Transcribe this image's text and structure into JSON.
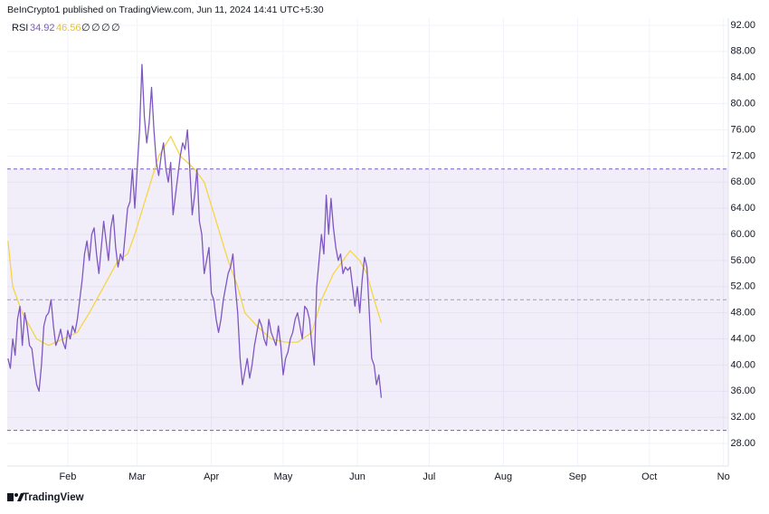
{
  "header": "BeInCrypto1 published on TradingView.com, Jun 11, 2024 14:41 UTC+5:30",
  "footer": "TradingView",
  "chart_data": {
    "type": "line",
    "legend": {
      "label": "RSI",
      "values": [
        34.92,
        46.56
      ],
      "placeholders": [
        "∅",
        "∅",
        "∅",
        "∅"
      ]
    },
    "x": [
      7,
      8,
      9,
      10,
      11,
      12,
      13,
      14,
      15,
      16,
      17,
      18,
      19,
      20,
      21,
      22,
      23,
      24,
      25,
      26,
      27,
      28,
      29,
      30,
      31,
      32,
      33,
      34,
      35,
      36,
      37,
      38,
      39,
      40,
      41,
      42,
      43,
      44,
      45,
      46,
      47,
      48,
      49,
      50,
      51,
      52,
      53,
      54,
      55,
      56,
      57,
      58,
      59,
      60,
      61,
      62,
      63,
      64,
      65,
      66,
      67,
      68,
      69,
      70,
      71,
      72,
      73,
      74,
      75,
      76,
      77,
      78,
      79,
      80,
      81,
      82,
      83,
      84,
      85,
      86,
      87,
      88,
      89,
      90,
      91,
      92,
      93,
      94,
      95,
      96,
      97,
      98,
      99,
      100,
      101,
      102,
      103,
      104,
      105,
      106,
      107,
      108,
      109,
      110,
      111,
      112,
      113,
      114,
      115,
      116,
      117,
      118,
      119,
      120,
      121,
      122,
      123,
      124,
      125,
      126,
      127,
      128,
      129,
      130,
      131,
      132,
      133,
      134,
      135,
      136,
      137,
      138,
      139,
      140,
      141,
      142,
      143,
      144,
      145,
      146,
      147,
      148,
      149,
      150,
      151,
      152,
      153,
      154,
      155,
      156,
      157,
      158,
      159,
      160,
      161,
      162,
      163
    ],
    "series": [
      {
        "name": "RSI",
        "color": "#7e57c2",
        "values": [
          41,
          39.5,
          44,
          41.5,
          47,
          49,
          43,
          48,
          46,
          43,
          42.5,
          39.5,
          37,
          36,
          40,
          46,
          47.5,
          48,
          50,
          46,
          43,
          44,
          45.5,
          43.5,
          42.5,
          45.3,
          44,
          46,
          45,
          47,
          50,
          53,
          57,
          59,
          56,
          60,
          61,
          57,
          54,
          58,
          62,
          59,
          56,
          61,
          63,
          58,
          55,
          57,
          56,
          60,
          64,
          65,
          70,
          64,
          70,
          76,
          86,
          78,
          74,
          77,
          82.5,
          76,
          71,
          69,
          72,
          74,
          70,
          68,
          71,
          63,
          66,
          69,
          72,
          74,
          73,
          76,
          70,
          63,
          66,
          70,
          62,
          60,
          54,
          56,
          58,
          51,
          50,
          47,
          45,
          47,
          50,
          52,
          54,
          55,
          57,
          52,
          48,
          41,
          37,
          39,
          41,
          38,
          40,
          43,
          45,
          47,
          46,
          44,
          43,
          47,
          45,
          44,
          43,
          46,
          43,
          38.5,
          41,
          42,
          44,
          45,
          47,
          48,
          46,
          44,
          49,
          48.5,
          47,
          43,
          40,
          52,
          56,
          60,
          57,
          66,
          60,
          65.5,
          61,
          58,
          56,
          57,
          54,
          55,
          54.5,
          55,
          52,
          49,
          52,
          48,
          53,
          56.5,
          55,
          48,
          41,
          40,
          37,
          38.5,
          35
        ]
      },
      {
        "name": "RSI-based MA",
        "color": "#f5d547",
        "x": [
          7,
          9,
          13,
          19,
          24,
          30,
          36,
          41,
          47,
          53,
          57,
          60,
          65,
          70,
          75,
          79,
          85,
          89,
          94,
          99,
          103,
          106,
          111,
          117,
          123,
          128,
          134,
          138,
          143,
          147,
          150,
          154,
          157,
          160,
          163
        ],
        "values": [
          59,
          52,
          48,
          44,
          43,
          44,
          45,
          48,
          52,
          56,
          57,
          60,
          66,
          72,
          75,
          72,
          70,
          68,
          62,
          56,
          52,
          48,
          46,
          44,
          43.5,
          43.5,
          45,
          50,
          54,
          56,
          57.5,
          56,
          54,
          50,
          46.5
        ]
      }
    ],
    "bands": {
      "upper": 70,
      "middle": 50,
      "lower": 30,
      "color": "#7e57c2"
    },
    "xlim": [
      6.7,
      308
    ],
    "xticks": [
      {
        "value": 32,
        "label": "Feb"
      },
      {
        "value": 61,
        "label": "Mar"
      },
      {
        "value": 92,
        "label": "Apr"
      },
      {
        "value": 122,
        "label": "May"
      },
      {
        "value": 153,
        "label": "Jun"
      },
      {
        "value": 183,
        "label": "Jul"
      },
      {
        "value": 214,
        "label": "Aug"
      },
      {
        "value": 245,
        "label": "Sep"
      },
      {
        "value": 275,
        "label": "Oct"
      },
      {
        "value": 306,
        "label": "No"
      }
    ],
    "ylim": [
      24.55,
      93.1
    ],
    "yticks": [
      {
        "value": 28,
        "label": "28.00"
      },
      {
        "value": 32,
        "label": "32.00"
      },
      {
        "value": 36,
        "label": "36.00"
      },
      {
        "value": 40,
        "label": "40.00"
      },
      {
        "value": 44,
        "label": "44.00"
      },
      {
        "value": 48,
        "label": "48.00"
      },
      {
        "value": 52,
        "label": "52.00"
      },
      {
        "value": 56,
        "label": "56.00"
      },
      {
        "value": 60,
        "label": "60.00"
      },
      {
        "value": 64,
        "label": "64.00"
      },
      {
        "value": 68,
        "label": "68.00"
      },
      {
        "value": 72,
        "label": "72.00"
      },
      {
        "value": 76,
        "label": "76.00"
      },
      {
        "value": 80,
        "label": "80.00"
      },
      {
        "value": 84,
        "label": "84.00"
      },
      {
        "value": 88,
        "label": "88.00"
      },
      {
        "value": 92,
        "label": "92.00"
      }
    ],
    "grid": true
  }
}
